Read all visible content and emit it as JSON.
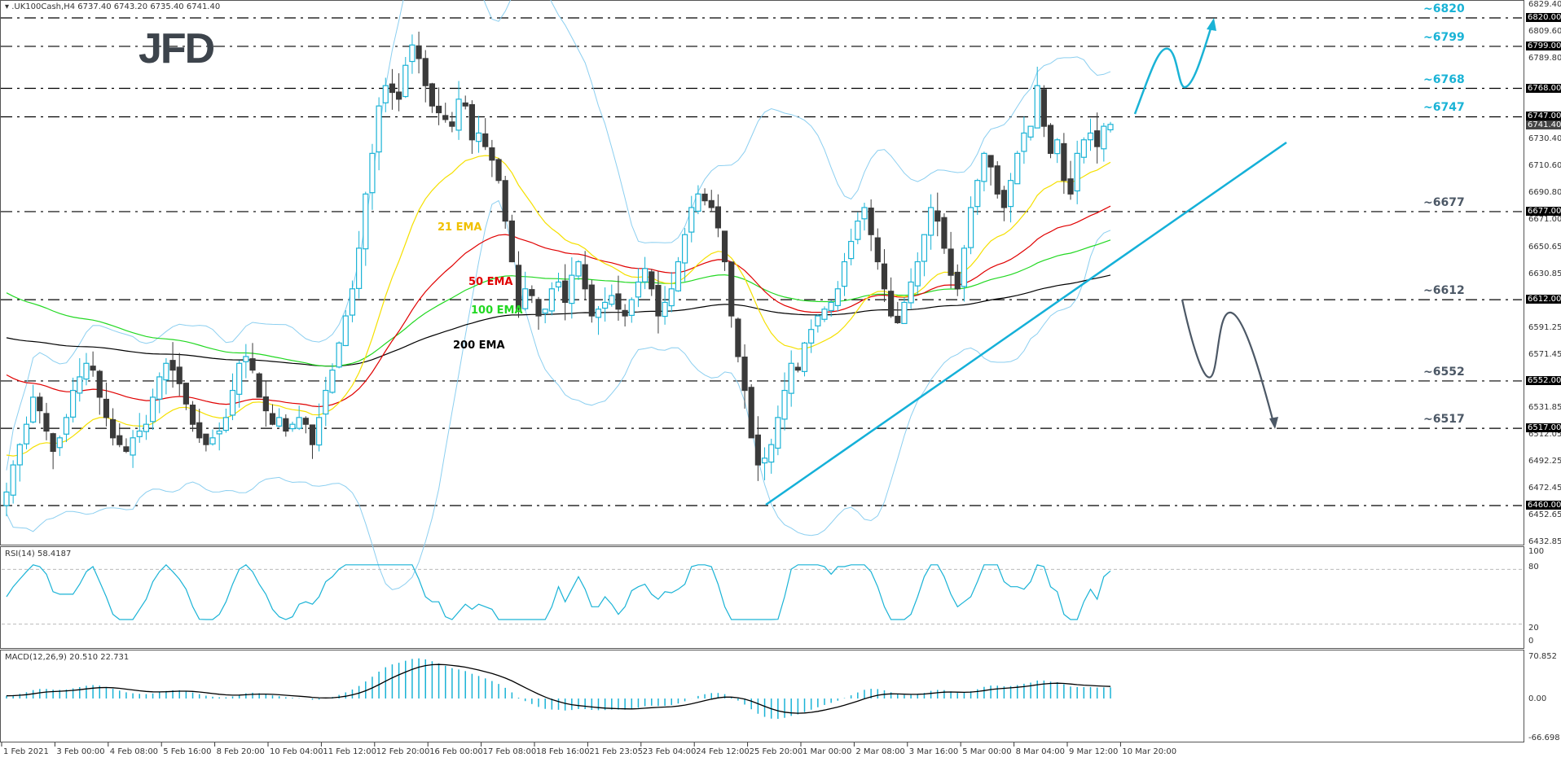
{
  "header": {
    "symbol_line": ".UK100Cash,H4  6737.40 6743.20 6735.40 6741.40",
    "logo": "JFD"
  },
  "colors": {
    "bull": "#1ab3d6",
    "bear": "#3a3a3a",
    "ema21": "#f5e000",
    "ema50": "#e00000",
    "ema100": "#22d822",
    "ema200": "#000000",
    "bollinger": "#8ccff0",
    "level_up": "#1ab3d6",
    "level_down": "#4c5866",
    "trend": "#14b0d8",
    "macd_hist": "#1ab3d6",
    "macd_signal": "#000000",
    "rsi": "#1ab3d6"
  },
  "price_axis": {
    "ticks": [
      "6829.40",
      "6809.60",
      "6789.80",
      "6730.40",
      "6710.60",
      "6690.80",
      "6671.00",
      "6650.65",
      "6630.85",
      "6591.25",
      "6571.45",
      "6531.85",
      "6512.05",
      "6492.25",
      "6472.45",
      "6452.65",
      "6432.85"
    ],
    "boxed": [
      "6820.00",
      "6799.00",
      "6768.00",
      "6747.00",
      "6677.00",
      "6612.00",
      "6552.00",
      "6517.00",
      "6460.00"
    ],
    "current": "6741.40"
  },
  "levels": [
    {
      "value": 6820,
      "label": "~6820",
      "side": "up"
    },
    {
      "value": 6799,
      "label": "~6799",
      "side": "up"
    },
    {
      "value": 6768,
      "label": "~6768",
      "side": "up"
    },
    {
      "value": 6747,
      "label": "~6747",
      "side": "up"
    },
    {
      "value": 6677,
      "label": "~6677",
      "side": "down"
    },
    {
      "value": 6612,
      "label": "~6612",
      "side": "down"
    },
    {
      "value": 6552,
      "label": "~6552",
      "side": "down"
    },
    {
      "value": 6517,
      "label": "~6517",
      "side": "down"
    },
    {
      "value": 6460,
      "label": "",
      "side": "down"
    }
  ],
  "ema_labels": {
    "ema21": "21 EMA",
    "ema50": "50 EMA",
    "ema100": "100 EMA",
    "ema200": "200 EMA"
  },
  "rsi": {
    "label": "RSI(14) 58.4187",
    "axis": [
      "100",
      "80",
      "20",
      "0"
    ]
  },
  "macd": {
    "label": "MACD(12,26,9) 20.510 22.731",
    "axis": [
      "70.852",
      "0.00",
      "-66.698"
    ]
  },
  "time_axis": [
    "1 Feb 2021",
    "3 Feb 00:00",
    "4 Feb 08:00",
    "5 Feb 16:00",
    "8 Feb 20:00",
    "10 Feb 04:00",
    "11 Feb 12:00",
    "12 Feb 20:00",
    "16 Feb 00:00",
    "17 Feb 08:00",
    "18 Feb 16:00",
    "21 Feb 23:05",
    "23 Feb 04:00",
    "24 Feb 12:00",
    "25 Feb 20:00",
    "1 Mar 00:00",
    "2 Mar 08:00",
    "3 Mar 16:00",
    "5 Mar 00:00",
    "8 Mar 04:00",
    "9 Mar 12:00",
    "10 Mar 20:00"
  ],
  "chart_data": {
    "type": "candlestick",
    "title": ".UK100Cash,H4",
    "symbol": ".UK100Cash",
    "timeframe": "H4",
    "last_ohlc": {
      "open": 6737.4,
      "high": 6743.2,
      "low": 6735.4,
      "close": 6741.4
    },
    "ylim": [
      6432.85,
      6829.4
    ],
    "x_labels": [
      "1 Feb 2021",
      "3 Feb 00:00",
      "4 Feb 08:00",
      "5 Feb 16:00",
      "8 Feb 20:00",
      "10 Feb 04:00",
      "11 Feb 12:00",
      "12 Feb 20:00",
      "16 Feb 00:00",
      "17 Feb 08:00",
      "18 Feb 16:00",
      "21 Feb 23:05",
      "23 Feb 04:00",
      "24 Feb 12:00",
      "25 Feb 20:00",
      "1 Mar 00:00",
      "2 Mar 08:00",
      "3 Mar 16:00",
      "5 Mar 00:00",
      "8 Mar 04:00",
      "9 Mar 12:00",
      "10 Mar 20:00"
    ],
    "closes": [
      6470,
      6490,
      6505,
      6520,
      6540,
      6530,
      6515,
      6500,
      6510,
      6525,
      6545,
      6555,
      6565,
      6560,
      6540,
      6525,
      6510,
      6505,
      6500,
      6510,
      6515,
      6520,
      6540,
      6555,
      6565,
      6560,
      6550,
      6535,
      6520,
      6510,
      6505,
      6510,
      6515,
      6525,
      6545,
      6565,
      6570,
      6560,
      6540,
      6530,
      6520,
      6525,
      6515,
      6520,
      6525,
      6520,
      6505,
      6525,
      6545,
      6560,
      6580,
      6600,
      6620,
      6650,
      6690,
      6720,
      6755,
      6770,
      6765,
      6760,
      6785,
      6800,
      6790,
      6770,
      6755,
      6750,
      6745,
      6740,
      6760,
      6755,
      6730,
      6735,
      6725,
      6715,
      6700,
      6670,
      6640,
      6605,
      6620,
      6615,
      6600,
      6605,
      6620,
      6625,
      6610,
      6630,
      6640,
      6620,
      6600,
      6605,
      6610,
      6615,
      6605,
      6600,
      6612,
      6625,
      6635,
      6620,
      6600,
      6610,
      6620,
      6640,
      6660,
      6680,
      6690,
      6685,
      6680,
      6665,
      6640,
      6600,
      6570,
      6545,
      6510,
      6490,
      6495,
      6505,
      6525,
      6545,
      6565,
      6560,
      6580,
      6590,
      6600,
      6605,
      6610,
      6620,
      6640,
      6655,
      6670,
      6680,
      6660,
      6640,
      6620,
      6600,
      6595,
      6610,
      6625,
      6640,
      6660,
      6680,
      6670,
      6650,
      6630,
      6620,
      6650,
      6680,
      6700,
      6720,
      6710,
      6690,
      6680,
      6700,
      6720,
      6735,
      6740,
      6770,
      6740,
      6720,
      6730,
      6700,
      6690,
      6720,
      6730,
      6735,
      6725,
      6740,
      6741.4
    ],
    "support_resistance": [
      6820,
      6799,
      6768,
      6747,
      6677,
      6612,
      6552,
      6517,
      6460
    ],
    "indicators": {
      "EMA": [
        21,
        50,
        100,
        200
      ],
      "Bollinger": "20",
      "RSI": {
        "period": 14,
        "value": 58.4187,
        "levels": [
          20,
          80
        ],
        "range": [
          0,
          100
        ]
      },
      "MACD": {
        "params": [
          12,
          26,
          9
        ],
        "main": 20.51,
        "signal": 22.731,
        "range": [
          -66.698,
          70.852
        ]
      }
    },
    "annotations": [
      {
        "type": "trendline",
        "from": {
          "x_label": "25 Feb 20:00",
          "price": 6460
        },
        "to": {
          "price": 6730
        }
      },
      {
        "type": "bullish_path",
        "targets": [
          6799,
          6768,
          6820
        ]
      },
      {
        "type": "bearish_path",
        "targets": [
          6552,
          6612,
          6517
        ]
      }
    ]
  }
}
